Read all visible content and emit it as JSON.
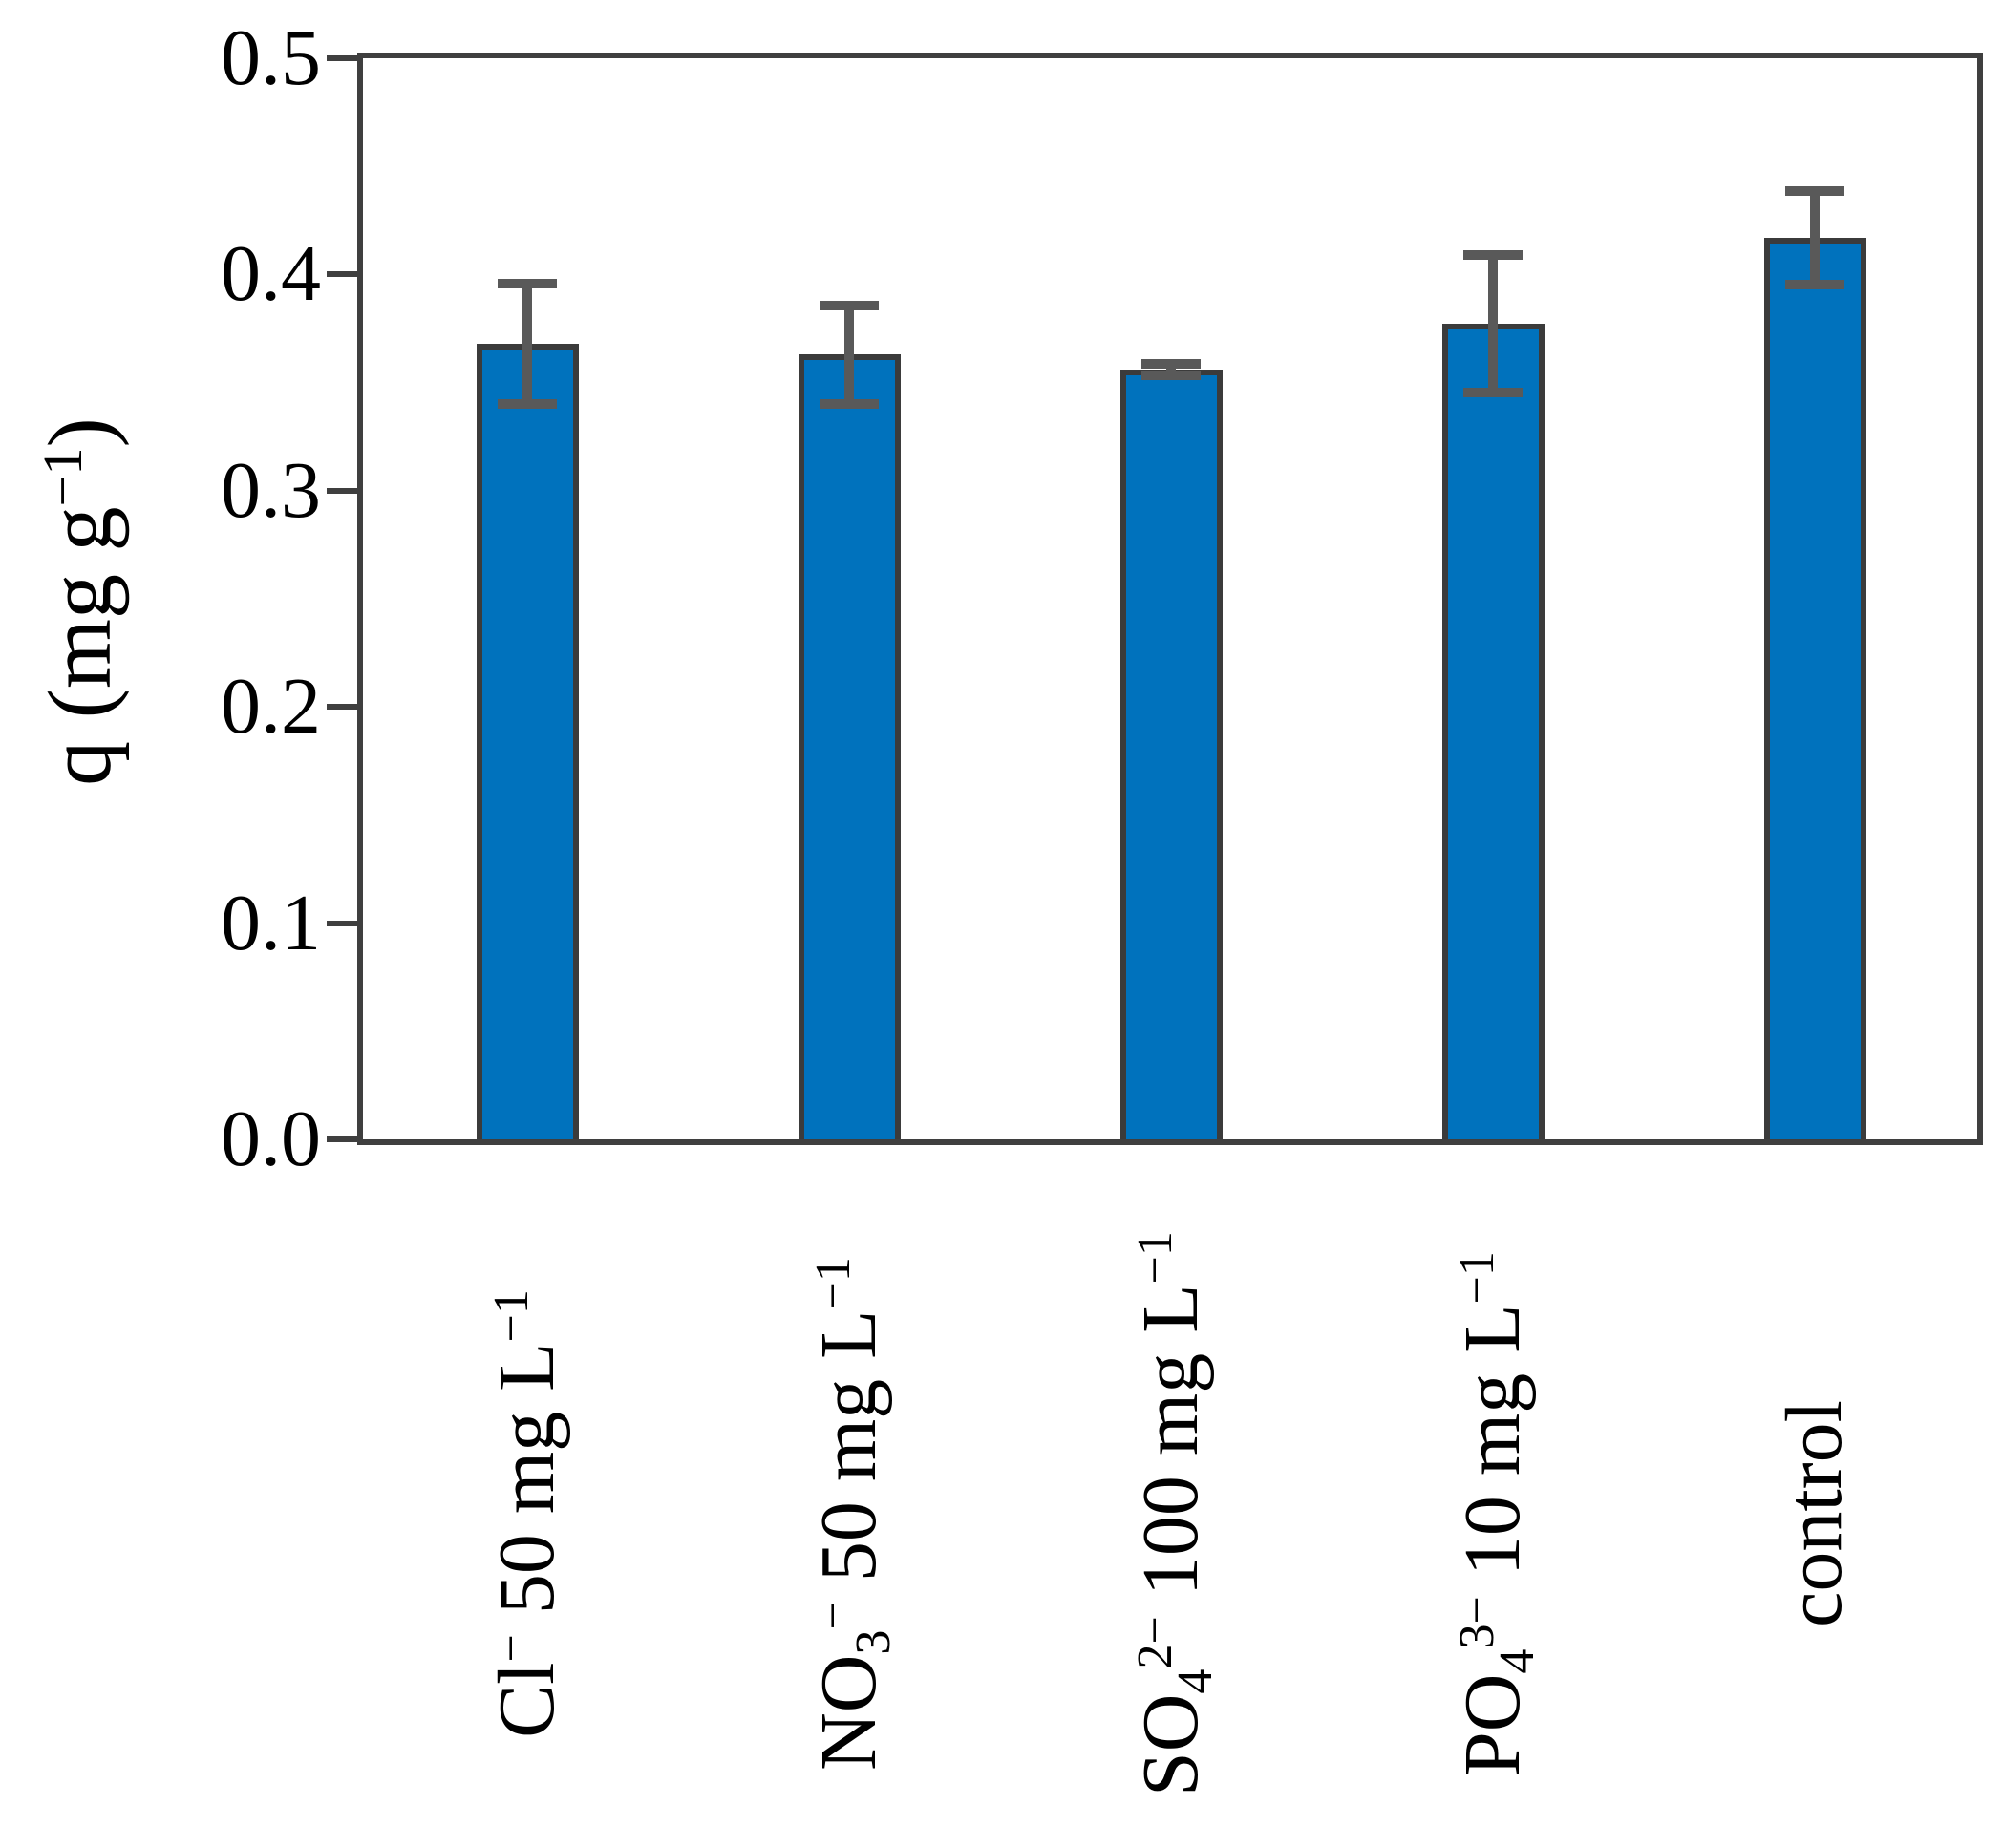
{
  "figure": {
    "background": "#ffffff"
  },
  "chart_data": {
    "type": "bar",
    "title": "",
    "xlabel": "",
    "ylabel_text": "q (mg g−1)",
    "ylabel_segments": [
      {
        "t": "q (mg g"
      },
      {
        "sup": "−1"
      },
      {
        "t": ")"
      }
    ],
    "categories": [
      "Cl− 50 mg L−1",
      "NO3− 50 mg L−1",
      "SO42− 100 mg L−1",
      "PO43− 10 mg L−1",
      "control"
    ],
    "category_segments": [
      [
        {
          "t": "Cl"
        },
        {
          "sup": "−"
        },
        {
          "t": " 50 mg L"
        },
        {
          "sup": "−1"
        }
      ],
      [
        {
          "t": "NO"
        },
        {
          "sub": "3"
        },
        {
          "sup": "−"
        },
        {
          "t": " 50 mg L"
        },
        {
          "sup": "−1"
        }
      ],
      [
        {
          "t": "SO"
        },
        {
          "sub": "4"
        },
        {
          "sup": "2−"
        },
        {
          "t": " 100 mg L"
        },
        {
          "sup": "−1"
        }
      ],
      [
        {
          "t": "PO"
        },
        {
          "sub": "4"
        },
        {
          "sup": "3−"
        },
        {
          "t": " 10 mg L"
        },
        {
          "sup": "−1"
        }
      ],
      [
        {
          "t": "control"
        }
      ]
    ],
    "values": [
      0.368,
      0.363,
      0.356,
      0.377,
      0.417
    ],
    "errors": [
      0.03,
      0.025,
      0.005,
      0.034,
      0.024
    ],
    "ylim": [
      0.0,
      0.5
    ],
    "yticks": [
      0.0,
      0.1,
      0.2,
      0.3,
      0.4,
      0.5
    ],
    "ytick_labels": [
      "0.0",
      "0.1",
      "0.2",
      "0.3",
      "0.4",
      "0.5"
    ],
    "grid": false,
    "legend": null,
    "error_bar_style": "caps both ends, gray, drawn over bar"
  },
  "colors": {
    "bar_fill": "#0072BD",
    "bar_edge": "#3B3B3B",
    "error_bar": "#595959",
    "axis": "#3F3F3F",
    "text": "#000000"
  }
}
